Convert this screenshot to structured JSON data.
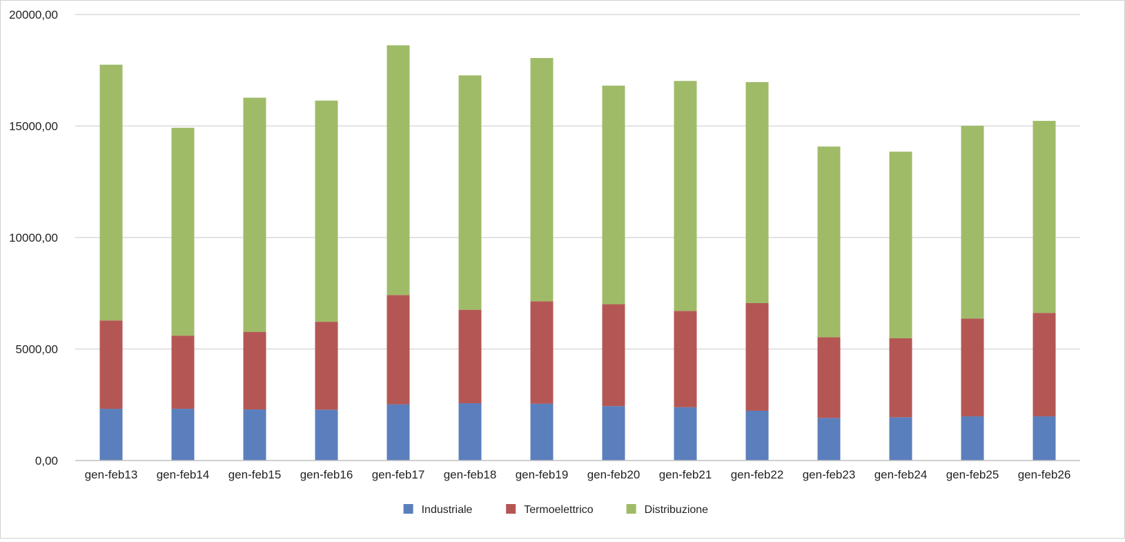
{
  "chart_data": {
    "type": "bar",
    "stacked": true,
    "title": "",
    "xlabel": "",
    "ylabel": "",
    "ylim": [
      0,
      20000
    ],
    "yticks": [
      0,
      5000,
      10000,
      15000,
      20000
    ],
    "ytick_labels": [
      "0,00",
      "5000,00",
      "10000,00",
      "15000,00",
      "20000,00"
    ],
    "grid": true,
    "legend_position": "bottom",
    "categories": [
      "gen-feb13",
      "gen-feb14",
      "gen-feb15",
      "gen-feb16",
      "gen-feb17",
      "gen-feb18",
      "gen-feb19",
      "gen-feb20",
      "gen-feb21",
      "gen-feb22",
      "gen-feb23",
      "gen-feb24",
      "gen-feb25",
      "gen-feb26"
    ],
    "series": [
      {
        "name": "Industriale",
        "color": "#5b7fbd",
        "values": [
          2320,
          2320,
          2290,
          2280,
          2520,
          2570,
          2550,
          2440,
          2390,
          2230,
          1910,
          1940,
          1980,
          1980
        ]
      },
      {
        "name": "Termoelettrico",
        "color": "#b45754",
        "values": [
          3960,
          3280,
          3480,
          3940,
          4900,
          4190,
          4590,
          4570,
          4320,
          4830,
          3620,
          3540,
          4390,
          4640
        ]
      },
      {
        "name": "Distribuzione",
        "color": "#a0bb68",
        "values": [
          11470,
          9320,
          10500,
          9920,
          11200,
          10510,
          10910,
          9800,
          10310,
          9910,
          8550,
          8370,
          8640,
          8610
        ]
      }
    ]
  }
}
